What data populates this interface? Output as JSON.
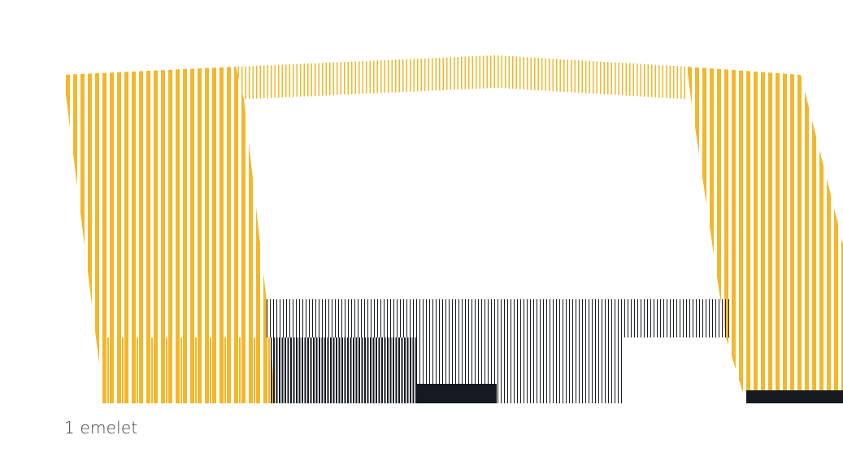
{
  "caption": "1 emelet",
  "colors": {
    "accent": "#f4b62a",
    "dark": "#141a20",
    "background": "#ffffff"
  }
}
